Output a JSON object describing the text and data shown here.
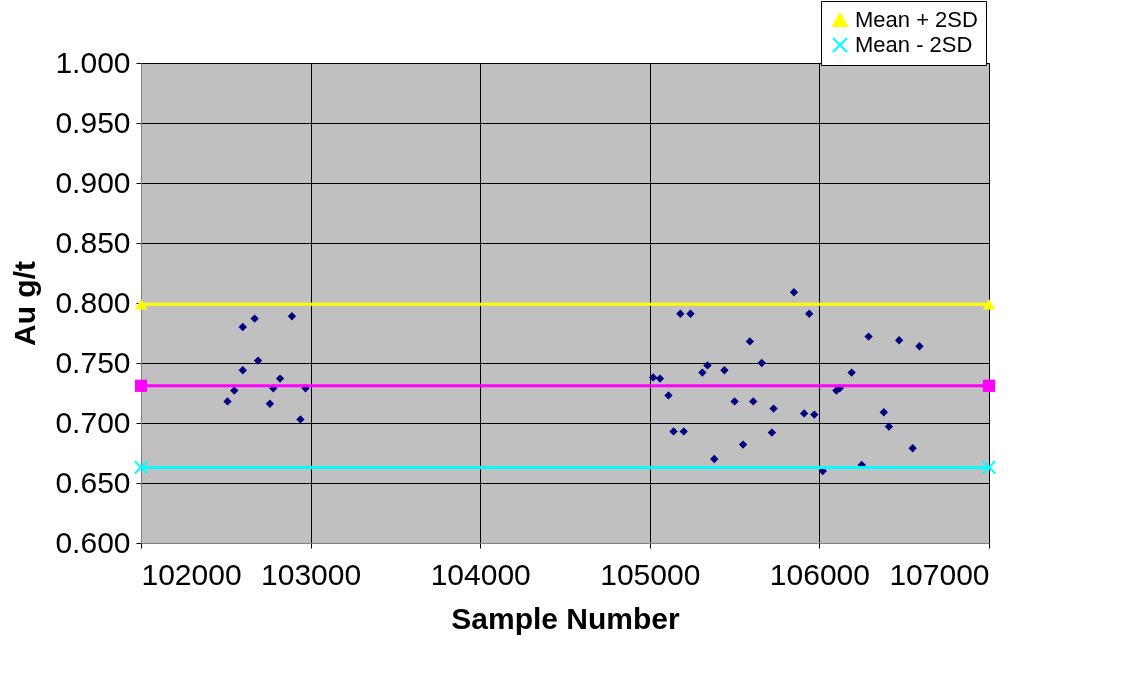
{
  "chart_data": {
    "type": "scatter",
    "xlabel": "Sample Number",
    "ylabel": "Au g/t",
    "xlim": [
      102000,
      107000
    ],
    "xticks": [
      102000,
      103000,
      104000,
      105000,
      106000,
      107000
    ],
    "ylim": [
      0.6,
      1.0
    ],
    "yticks": [
      {
        "value": 0.6,
        "label": "0.600"
      },
      {
        "value": 0.65,
        "label": "0.650"
      },
      {
        "value": 0.7,
        "label": "0.700"
      },
      {
        "value": 0.75,
        "label": "0.750"
      },
      {
        "value": 0.8,
        "label": "0.800"
      },
      {
        "value": 0.85,
        "label": "0.850"
      },
      {
        "value": 0.9,
        "label": "0.900"
      },
      {
        "value": 0.95,
        "label": "0.950"
      },
      {
        "value": 1.0,
        "label": "1.000"
      }
    ],
    "grid": true,
    "legend": "top right",
    "series": [
      {
        "color": "#000080",
        "marker": "diamond",
        "x": [
          102510,
          102550,
          102600,
          102600,
          102670,
          102690,
          102760,
          102780,
          102820,
          102890,
          102940,
          102970,
          105850,
          105180,
          105240,
          105940,
          105590,
          105660,
          105340,
          105310,
          105440,
          105020,
          105060,
          105110,
          105500,
          105610,
          105730,
          105910,
          105970,
          105140,
          105200,
          105720,
          105550,
          105380,
          106020,
          106290,
          106470,
          106590,
          106190,
          106120,
          106100,
          106380,
          106410,
          106550,
          106250
        ],
        "values": [
          0.718,
          0.727,
          0.744,
          0.78,
          0.787,
          0.752,
          0.716,
          0.729,
          0.737,
          0.789,
          0.703,
          0.729,
          0.809,
          0.791,
          0.791,
          0.791,
          0.768,
          0.75,
          0.748,
          0.742,
          0.744,
          0.738,
          0.737,
          0.723,
          0.718,
          0.718,
          0.712,
          0.708,
          0.707,
          0.693,
          0.693,
          0.692,
          0.682,
          0.67,
          0.66,
          0.772,
          0.769,
          0.764,
          0.742,
          0.729,
          0.727,
          0.709,
          0.697,
          0.679,
          0.665
        ]
      },
      {
        "type": "line",
        "name": "Mean + 2SD",
        "color": "#ffff00",
        "marker": "triangle",
        "x": [
          102000,
          107000
        ],
        "values": [
          0.799,
          0.799
        ]
      },
      {
        "type": "line",
        "color": "#ff00ff",
        "marker": "square",
        "x": [
          102000,
          107000
        ],
        "values": [
          0.731,
          0.731
        ]
      },
      {
        "type": "line",
        "name": "Mean - 2SD",
        "color": "#00ffff",
        "marker": "cross",
        "x": [
          102000,
          107000
        ],
        "values": [
          0.663,
          0.663
        ]
      }
    ]
  }
}
